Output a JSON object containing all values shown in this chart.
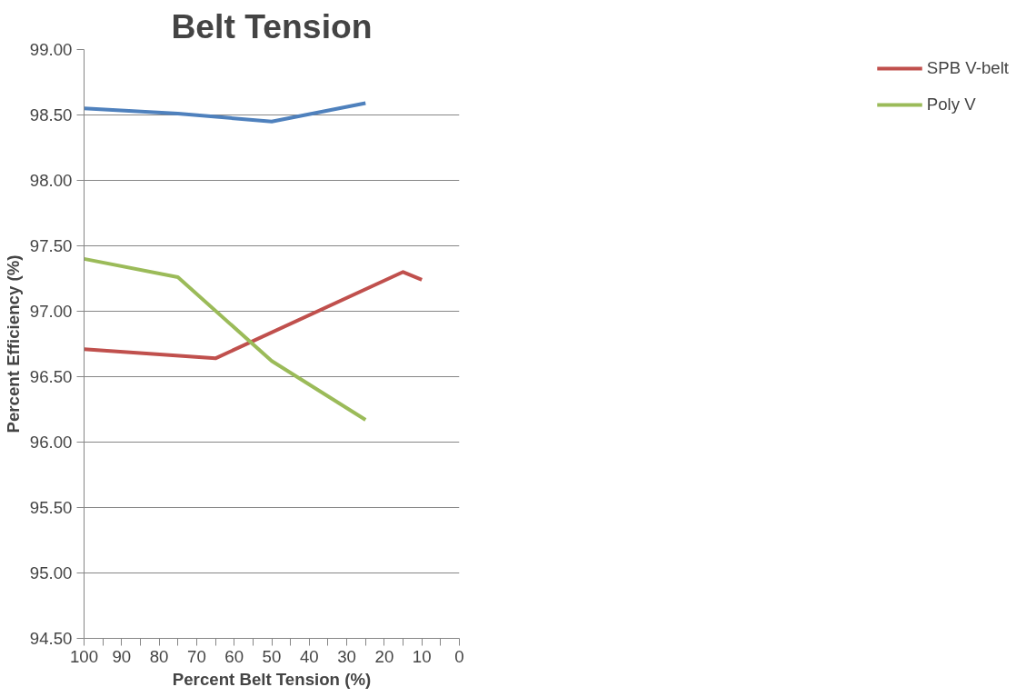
{
  "chart_data": {
    "type": "line",
    "title": "Belt Tension",
    "xlabel": "Percent Belt Tension (%)",
    "ylabel": "Percent Efficiency (%)",
    "xlim": [
      100,
      0
    ],
    "ylim": [
      94.5,
      99
    ],
    "xticks": [
      100,
      {
        "value": 95,
        "label": null
      },
      90,
      {
        "value": 85,
        "label": null
      },
      80,
      {
        "value": 75,
        "label": null
      },
      70,
      {
        "value": 65,
        "label": null
      },
      60,
      {
        "value": 55,
        "label": null
      },
      50,
      {
        "value": 45,
        "label": null
      },
      40,
      {
        "value": 35,
        "label": null
      },
      30,
      {
        "value": 25,
        "label": null
      },
      20,
      {
        "value": 15,
        "label": null
      },
      10,
      {
        "value": 5,
        "label": null
      },
      0
    ],
    "yticks": [
      {
        "value": 94.5,
        "label": "94.50"
      },
      {
        "value": 95,
        "label": "95.00"
      },
      {
        "value": 95.5,
        "label": "95.50"
      },
      {
        "value": 96,
        "label": "96.00"
      },
      {
        "value": 96.5,
        "label": "96.50"
      },
      {
        "value": 97,
        "label": "97.00"
      },
      {
        "value": 97.5,
        "label": "97.50"
      },
      {
        "value": 98,
        "label": "98.00"
      },
      {
        "value": 98.5,
        "label": "98.50"
      },
      {
        "value": 99,
        "label": "99.00"
      }
    ],
    "grid": "y",
    "legend": "right",
    "marker": "none",
    "line_style": "solid",
    "series": [
      {
        "name": "SPB V-belt",
        "color": "#c0504d",
        "x": [
          100,
          65,
          15,
          10
        ],
        "values": [
          96.71,
          96.64,
          97.3,
          97.24
        ]
      },
      {
        "name": "Poly V",
        "color": "#9bbb59",
        "x": [
          100,
          75,
          50,
          25
        ],
        "values": [
          97.4,
          97.26,
          96.62,
          96.17
        ]
      },
      {
        "color": "#4f81bd",
        "x": [
          100,
          75,
          50,
          25
        ],
        "values": [
          98.55,
          98.51,
          98.45,
          98.59
        ]
      }
    ]
  }
}
